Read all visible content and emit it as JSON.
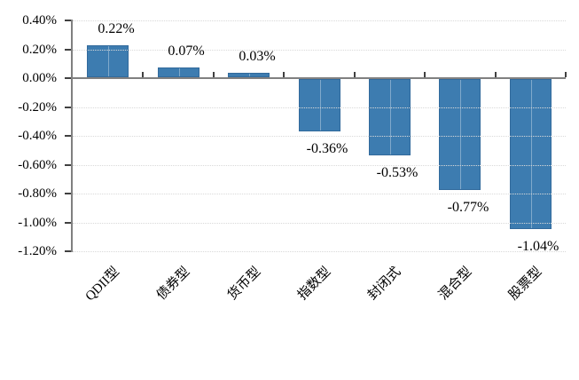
{
  "chart_data": {
    "type": "bar",
    "title": "",
    "xlabel": "",
    "ylabel": "",
    "legend": "none",
    "grid": "horizontal-dotted",
    "categories": [
      "QDII型",
      "债券型",
      "货币型",
      "指数型",
      "封闭式",
      "混合型",
      "股票型"
    ],
    "values": [
      0.22,
      0.07,
      0.03,
      -0.36,
      -0.53,
      -0.77,
      -1.04
    ],
    "data_labels": [
      "0.22%",
      "0.07%",
      "0.03%",
      "-0.36%",
      "-0.53%",
      "-0.77%",
      "-1.04%"
    ],
    "ylim": [
      -1.2,
      0.4
    ],
    "y_axis": {
      "tick_step": 0.2,
      "tick_values": [
        0.4,
        0.2,
        0.0,
        -0.2,
        -0.4,
        -0.6,
        -0.8,
        -1.0,
        -1.2
      ],
      "tick_labels": [
        "0.40%",
        "0.20%",
        "0.00%",
        "-0.20%",
        "-0.40%",
        "-0.60%",
        "-0.80%",
        "-1.00%",
        "-1.20%"
      ]
    },
    "colors": {
      "bar_fill": "#3D7CB0",
      "bar_border": "#326A9C",
      "axis_line": "#808080",
      "tick_mark": "#404040",
      "gridline": "#D9D9D9",
      "text": "#000000",
      "background": "#FFFFFF"
    }
  }
}
